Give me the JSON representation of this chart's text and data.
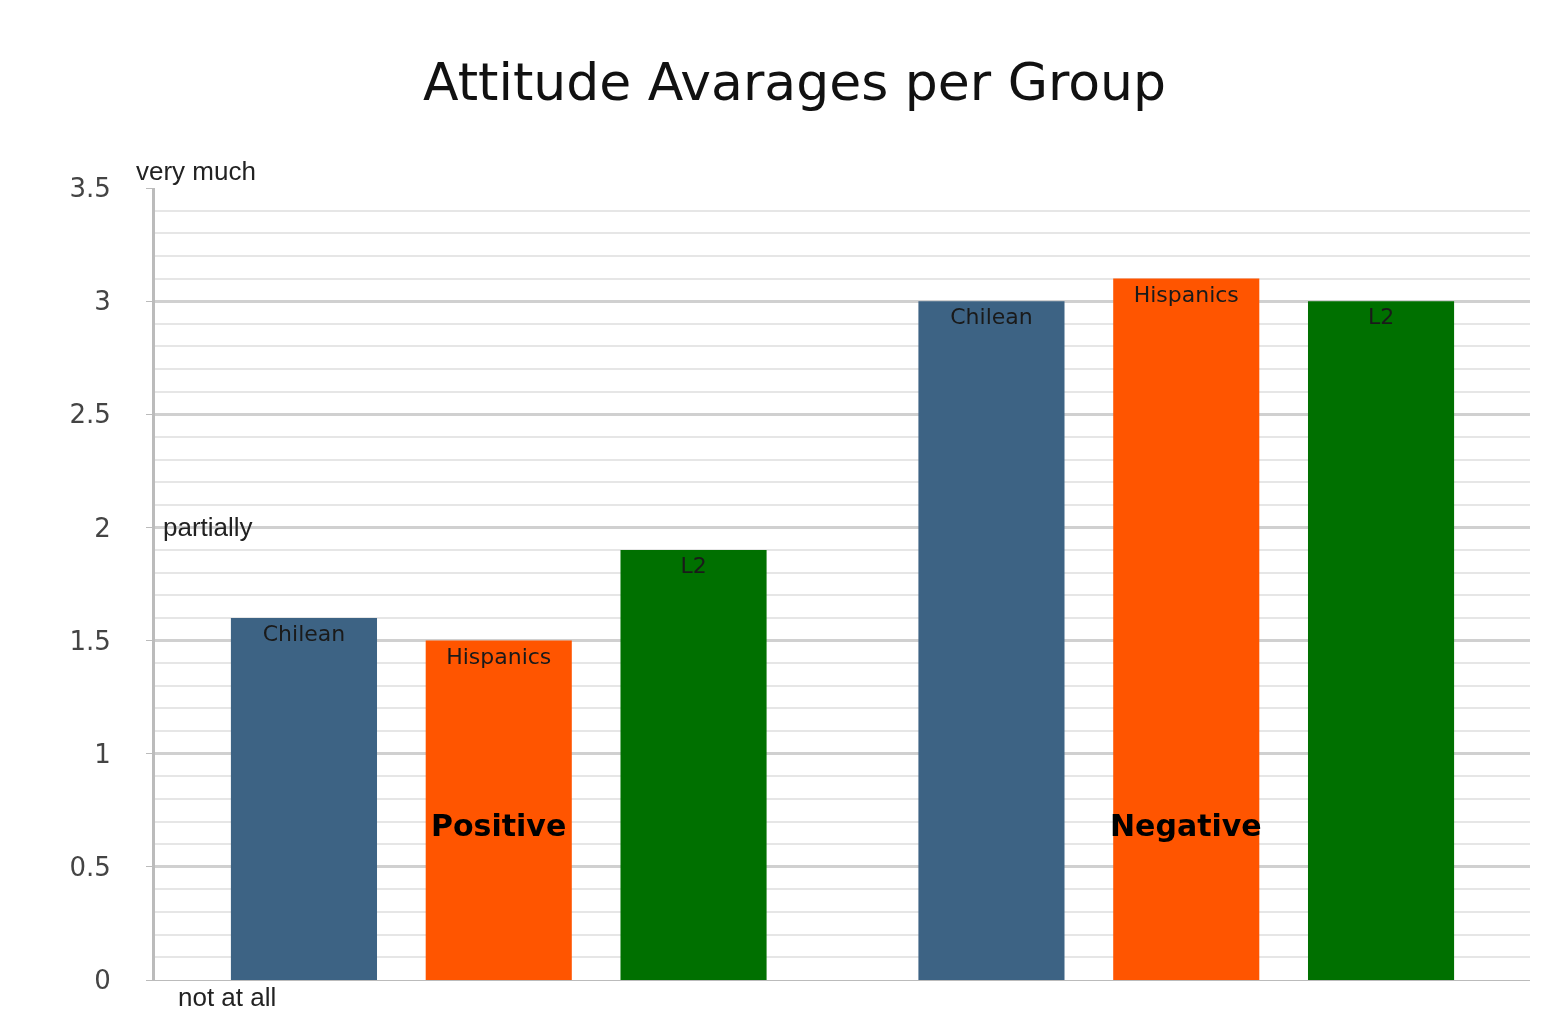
{
  "chart_data": {
    "type": "bar",
    "title": "Attitude Avarages per Group",
    "categories": [
      "Positive",
      "Negative"
    ],
    "series": [
      {
        "name": "Chilean",
        "color": "#3d6384",
        "values": [
          1.6,
          3.0
        ]
      },
      {
        "name": "Hispanics",
        "color": "#ff5500",
        "values": [
          1.5,
          3.1
        ]
      },
      {
        "name": "L2",
        "color": "#007000",
        "values": [
          1.9,
          3.0
        ]
      }
    ],
    "ylim": [
      0,
      3.5
    ],
    "yticks": [
      0,
      0.5,
      1,
      1.5,
      2,
      2.5,
      3,
      3.5
    ],
    "grid": true,
    "legend": false,
    "annotations": [
      "very much",
      "partially",
      "not at all"
    ]
  }
}
